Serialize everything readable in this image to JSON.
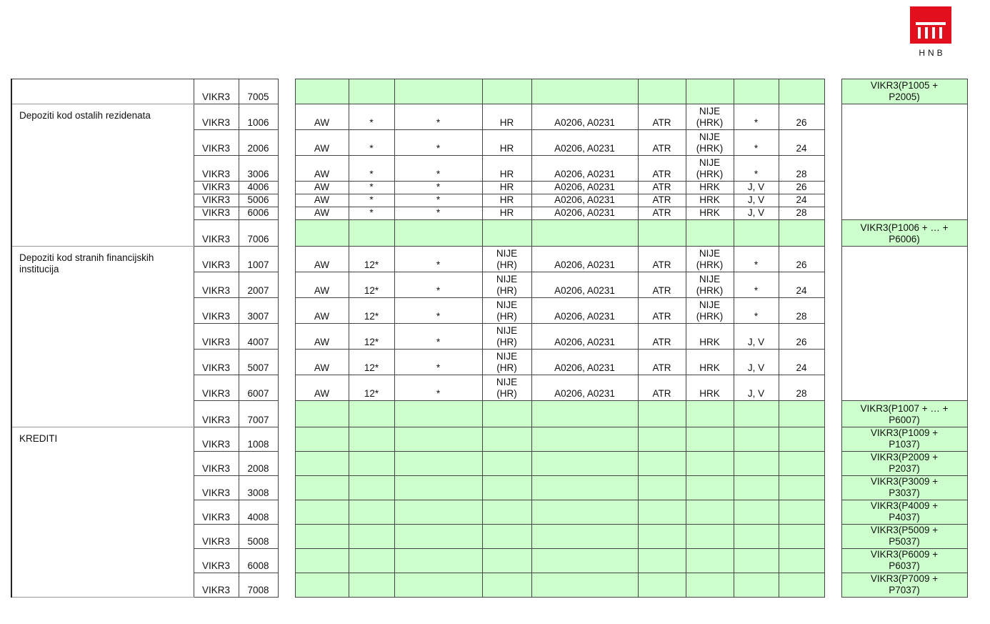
{
  "logo": {
    "text": "HNB",
    "color": "#e2101c"
  },
  "colors": {
    "green": "#ccffcc"
  },
  "groups": [
    {
      "description": "",
      "rows": [
        {
          "code": "VIKR3",
          "num": "7005",
          "green": true,
          "formula": "VIKR3(P1005 +\nP2005)"
        }
      ]
    },
    {
      "description": "Depoziti kod ostalih rezidenata",
      "rows": [
        {
          "code": "VIKR3",
          "num": "1006",
          "cells": [
            "AW",
            "*",
            "*",
            "HR",
            "A0206, A0231",
            "ATR",
            "NIJE\n(HRK)",
            "*",
            "26"
          ]
        },
        {
          "code": "VIKR3",
          "num": "2006",
          "cells": [
            "AW",
            "*",
            "*",
            "HR",
            "A0206, A0231",
            "ATR",
            "NIJE\n(HRK)",
            "*",
            "24"
          ]
        },
        {
          "code": "VIKR3",
          "num": "3006",
          "cells": [
            "AW",
            "*",
            "*",
            "HR",
            "A0206, A0231",
            "ATR",
            "NIJE\n(HRK)",
            "*",
            "28"
          ]
        },
        {
          "code": "VIKR3",
          "num": "4006",
          "cells": [
            "AW",
            "*",
            "*",
            "HR",
            "A0206, A0231",
            "ATR",
            "HRK",
            "J, V",
            "26"
          ]
        },
        {
          "code": "VIKR3",
          "num": "5006",
          "cells": [
            "AW",
            "*",
            "*",
            "HR",
            "A0206, A0231",
            "ATR",
            "HRK",
            "J, V",
            "24"
          ]
        },
        {
          "code": "VIKR3",
          "num": "6006",
          "cells": [
            "AW",
            "*",
            "*",
            "HR",
            "A0206, A0231",
            "ATR",
            "HRK",
            "J, V",
            "28"
          ]
        },
        {
          "code": "VIKR3",
          "num": "7006",
          "green": true,
          "formula": "VIKR3(P1006 + … +\nP6006)"
        }
      ]
    },
    {
      "description": "Depoziti kod stranih financijskih institucija",
      "rows": [
        {
          "code": "VIKR3",
          "num": "1007",
          "cells": [
            "AW",
            "12*",
            "*",
            "NIJE\n(HR)",
            "A0206, A0231",
            "ATR",
            "NIJE\n(HRK)",
            "*",
            "26"
          ]
        },
        {
          "code": "VIKR3",
          "num": "2007",
          "cells": [
            "AW",
            "12*",
            "*",
            "NIJE\n(HR)",
            "A0206, A0231",
            "ATR",
            "NIJE\n(HRK)",
            "*",
            "24"
          ]
        },
        {
          "code": "VIKR3",
          "num": "3007",
          "cells": [
            "AW",
            "12*",
            "*",
            "NIJE\n(HR)",
            "A0206, A0231",
            "ATR",
            "NIJE\n(HRK)",
            "*",
            "28"
          ]
        },
        {
          "code": "VIKR3",
          "num": "4007",
          "cells": [
            "AW",
            "12*",
            "*",
            "NIJE\n(HR)",
            "A0206, A0231",
            "ATR",
            "HRK",
            "J, V",
            "26"
          ]
        },
        {
          "code": "VIKR3",
          "num": "5007",
          "cells": [
            "AW",
            "12*",
            "*",
            "NIJE\n(HR)",
            "A0206, A0231",
            "ATR",
            "HRK",
            "J, V",
            "24"
          ]
        },
        {
          "code": "VIKR3",
          "num": "6007",
          "cells": [
            "AW",
            "12*",
            "*",
            "NIJE\n(HR)",
            "A0206, A0231",
            "ATR",
            "HRK",
            "J, V",
            "28"
          ]
        },
        {
          "code": "VIKR3",
          "num": "7007",
          "green": true,
          "formula": "VIKR3(P1007 + … +\nP6007)"
        }
      ]
    },
    {
      "description": "KREDITI",
      "rows": [
        {
          "code": "VIKR3",
          "num": "1008",
          "green": true,
          "formula": "VIKR3(P1009 +\nP1037)"
        },
        {
          "code": "VIKR3",
          "num": "2008",
          "green": true,
          "formula": "VIKR3(P2009 +\nP2037)"
        },
        {
          "code": "VIKR3",
          "num": "3008",
          "green": true,
          "formula": "VIKR3(P3009 +\nP3037)"
        },
        {
          "code": "VIKR3",
          "num": "4008",
          "green": true,
          "formula": "VIKR3(P4009 +\nP4037)"
        },
        {
          "code": "VIKR3",
          "num": "5008",
          "green": true,
          "formula": "VIKR3(P5009 +\nP5037)"
        },
        {
          "code": "VIKR3",
          "num": "6008",
          "green": true,
          "formula": "VIKR3(P6009 +\nP6037)"
        },
        {
          "code": "VIKR3",
          "num": "7008",
          "green": true,
          "formula": "VIKR3(P7009 +\nP7037)"
        }
      ]
    }
  ]
}
